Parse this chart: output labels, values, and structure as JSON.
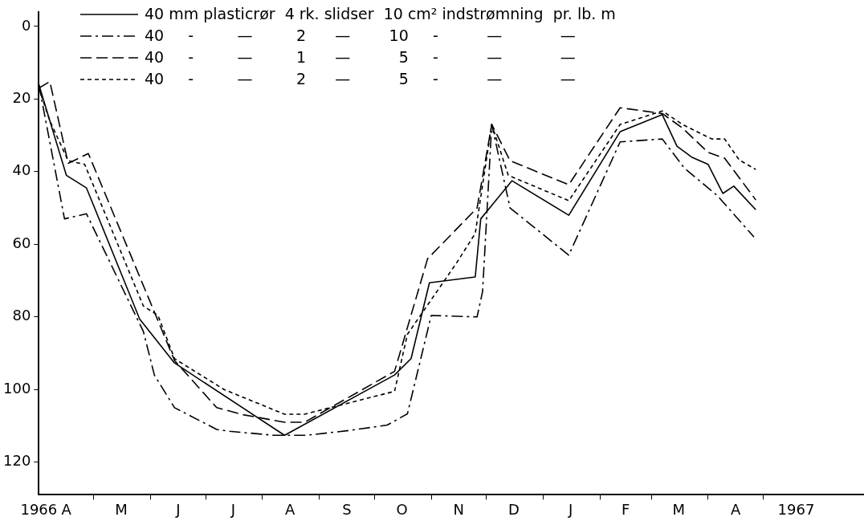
{
  "chart_data": {
    "type": "line",
    "xlim": [
      "1966-04-01",
      "1967-06-25"
    ],
    "ylim": [
      129,
      -4
    ],
    "xticks": [
      {
        "value": "1966-04-01",
        "label": "1966"
      },
      {
        "value": "1966-04-16",
        "label": "A"
      },
      {
        "value": "1966-05-01",
        "label": null
      },
      {
        "value": "1966-05-16",
        "label": "M"
      },
      {
        "value": "1966-06-01",
        "label": null
      },
      {
        "value": "1966-06-16",
        "label": "J"
      },
      {
        "value": "1966-07-01",
        "label": null
      },
      {
        "value": "1966-07-16",
        "label": "J"
      },
      {
        "value": "1966-08-01",
        "label": null
      },
      {
        "value": "1966-08-16",
        "label": "A"
      },
      {
        "value": "1966-09-01",
        "label": null
      },
      {
        "value": "1966-09-16",
        "label": "S"
      },
      {
        "value": "1966-10-01",
        "label": null
      },
      {
        "value": "1966-10-16",
        "label": "O"
      },
      {
        "value": "1966-11-01",
        "label": null
      },
      {
        "value": "1966-11-16",
        "label": "N"
      },
      {
        "value": "1966-12-01",
        "label": null
      },
      {
        "value": "1966-12-16",
        "label": "D"
      },
      {
        "value": "1967-01-01",
        "label": null
      },
      {
        "value": "1967-01-16",
        "label": "J"
      },
      {
        "value": "1967-02-01",
        "label": null
      },
      {
        "value": "1967-02-15",
        "label": "F"
      },
      {
        "value": "1967-03-01",
        "label": null
      },
      {
        "value": "1967-03-16",
        "label": "M"
      },
      {
        "value": "1967-04-01",
        "label": null
      },
      {
        "value": "1967-04-16",
        "label": "A"
      },
      {
        "value": "1967-05-01",
        "label": null
      },
      {
        "value": "1967-05-19",
        "label": "1967"
      }
    ],
    "yticks": [
      0,
      20,
      40,
      60,
      80,
      100,
      120
    ],
    "grid": false,
    "legend": "top",
    "marker": "none",
    "series": [
      {
        "name": "40 mm plasticrør  4 rk. slidser  10 cm² indstrømning  pr. lb. m",
        "color": "#000000",
        "line_style": "solid",
        "x": [
          "1966-04-01",
          "1966-04-16",
          "1966-04-27",
          "1966-05-26",
          "1966-06-14",
          "1966-08-13",
          "1966-10-12",
          "1966-10-21",
          "1966-10-31",
          "1966-11-25",
          "1966-11-28",
          "1966-12-15",
          "1967-01-15",
          "1967-02-12",
          "1967-03-07",
          "1967-03-15",
          "1967-03-23",
          "1967-04-01",
          "1967-04-09",
          "1967-04-15",
          "1967-04-27"
        ],
        "values": [
          16,
          41,
          44.5,
          80.6,
          92.7,
          112.6,
          96,
          91.5,
          70.6,
          69,
          53,
          42.5,
          52,
          29,
          24.3,
          33,
          36,
          38,
          46,
          44,
          50.5
        ]
      },
      {
        "name": "40     -         —         2      —        10     -          —            —",
        "color": "#000000",
        "line_style": "dashdot",
        "x": [
          "1966-04-01",
          "1966-04-15",
          "1966-04-27",
          "1966-05-28",
          "1966-06-03",
          "1966-06-14",
          "1966-07-07",
          "1966-07-14",
          "1966-08-07",
          "1966-08-25",
          "1966-09-17",
          "1966-10-08",
          "1966-10-19",
          "1966-11-01",
          "1966-11-26",
          "1966-11-29",
          "1966-12-04",
          "1966-12-14",
          "1967-01-15",
          "1967-02-12",
          "1967-03-07",
          "1967-03-19",
          "1967-04-06",
          "1967-04-26"
        ],
        "values": [
          16,
          53,
          51.6,
          84,
          96,
          105,
          111,
          111.5,
          112.6,
          112.6,
          111.3,
          109.8,
          106.7,
          79.6,
          80,
          73,
          27,
          50,
          63,
          31.8,
          31,
          39,
          46.6,
          58
        ]
      },
      {
        "name": "40     -         —         1      —          5     -          —            —",
        "color": "#000000",
        "line_style": "dashed",
        "x": [
          "1966-04-01",
          "1966-04-07",
          "1966-04-17",
          "1966-04-28",
          "1966-05-31",
          "1966-06-14",
          "1966-07-07",
          "1966-07-22",
          "1966-08-13",
          "1966-08-24",
          "1966-10-12",
          "1966-10-30",
          "1966-11-26",
          "1966-12-04",
          "1966-12-14",
          "1967-01-15",
          "1967-02-12",
          "1967-03-07",
          "1967-03-18",
          "1967-04-01",
          "1967-04-10",
          "1967-04-27"
        ],
        "values": [
          17,
          15.2,
          37.7,
          35,
          75,
          92,
          105,
          107,
          109,
          109,
          95,
          64,
          50,
          27,
          37,
          43.6,
          22.4,
          24,
          28,
          34.7,
          36.3,
          47.8
        ]
      },
      {
        "name": "40     -         —         2      —          5     -          —            —",
        "color": "#000000",
        "line_style": "dotted",
        "x": [
          "1966-04-01",
          "1966-04-07",
          "1966-04-17",
          "1966-04-26",
          "1966-05-28",
          "1966-06-05",
          "1966-06-14",
          "1966-07-11",
          "1966-08-13",
          "1966-08-24",
          "1966-10-12",
          "1966-10-19",
          "1966-11-15",
          "1966-11-25",
          "1966-12-04",
          "1966-12-13",
          "1967-01-15",
          "1967-02-12",
          "1967-03-07",
          "1967-03-18",
          "1967-04-03",
          "1967-04-10",
          "1967-04-18",
          "1967-04-27"
        ],
        "values": [
          17,
          26,
          37,
          38,
          77,
          79.6,
          91.5,
          100,
          106.8,
          106.8,
          100.5,
          84.8,
          65,
          57,
          27,
          41,
          48,
          27,
          23.3,
          27,
          31,
          31,
          36.8,
          39.4
        ]
      }
    ]
  }
}
